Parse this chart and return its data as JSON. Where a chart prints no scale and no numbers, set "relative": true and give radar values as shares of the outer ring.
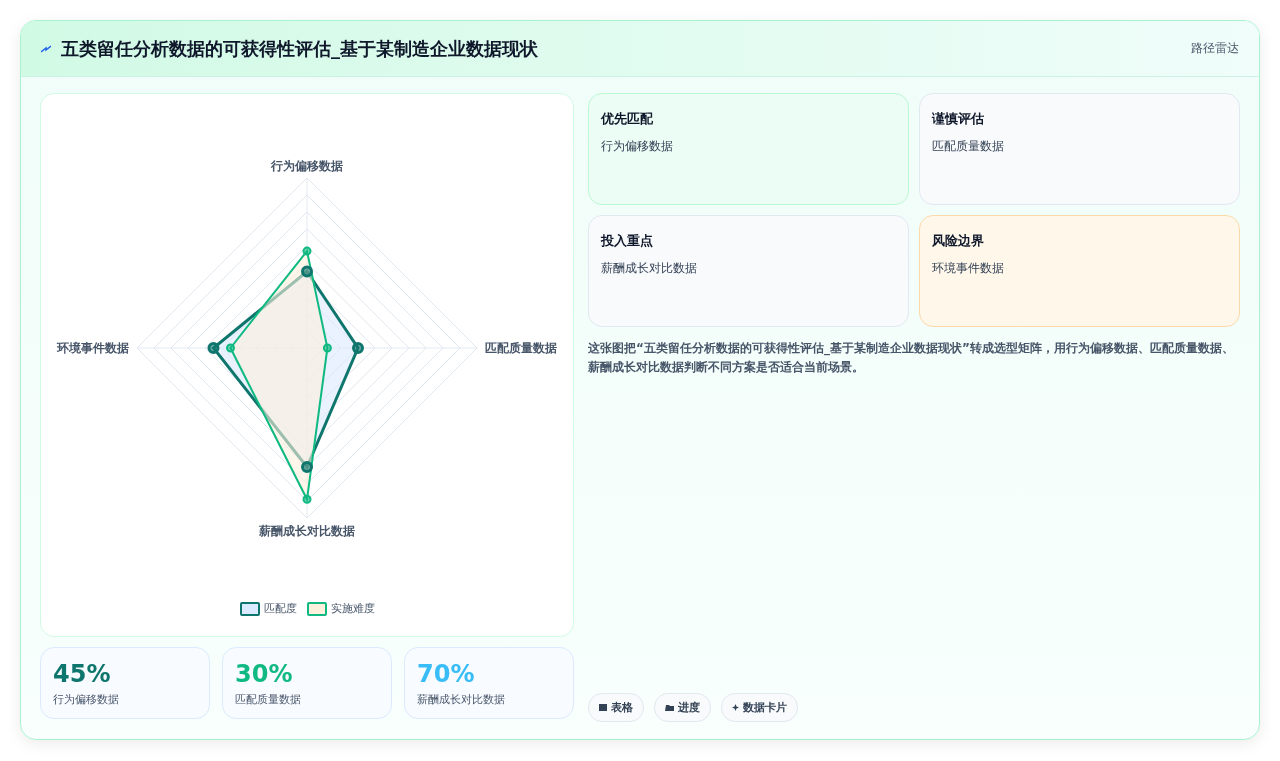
{
  "chart_data": {
    "type": "radar",
    "title": "五类留任分析数据的可获得性评估_基于某制造企业数据现状",
    "relative": true,
    "categories": [
      "行为偏移数据",
      "匹配质量数据",
      "薪酬成长对比数据",
      "环境事件数据"
    ],
    "series": [
      {
        "name": "匹配度",
        "color": "#0f766e",
        "values": [
          0.45,
          0.3,
          0.7,
          0.55
        ]
      },
      {
        "name": "实施难度",
        "color": "#10b981",
        "values": [
          0.57,
          0.12,
          0.89,
          0.45
        ]
      }
    ],
    "marker": "circle",
    "legend": "bottom",
    "grid": true,
    "annotations": [
      "路径雷达",
      "优先匹配",
      "行为偏移数据",
      "谨慎评估",
      "匹配质量数据",
      "投入重点",
      "薪酬成长对比数据",
      "风险边界",
      "环境事件数据",
      "这张图把“五类留任分析数据的可获得性评估_基于某制造企业数据现状”转成选型矩阵，用行为偏移数据、匹配质量数据、薪酬成长对比数据判断不同方案是否适合当前场景。",
      "45%",
      "行为偏移数据",
      "30%",
      "匹配质量数据",
      "70%",
      "薪酬成长对比数据",
      "表格",
      "进度",
      "数据卡片"
    ]
  }
}
